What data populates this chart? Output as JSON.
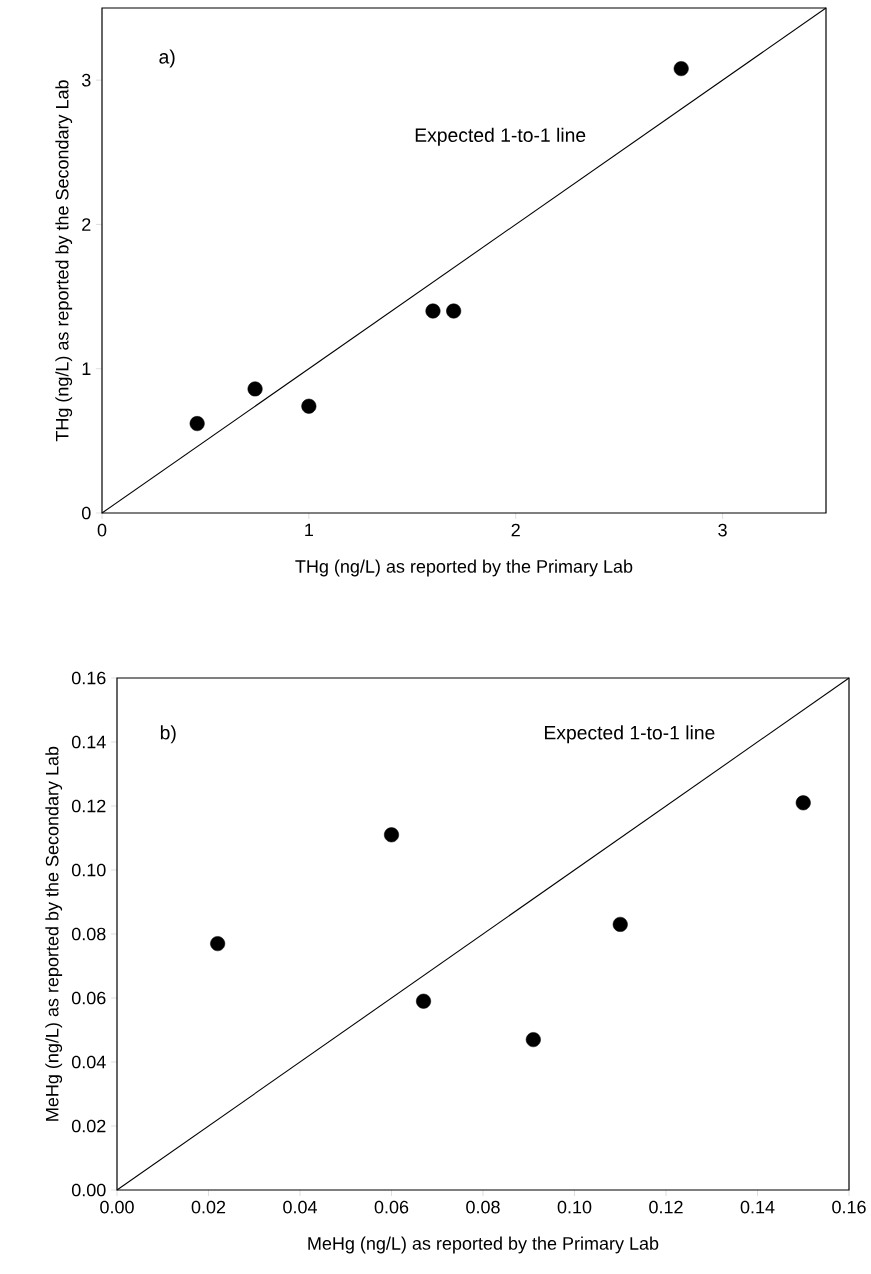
{
  "chart_data": [
    {
      "type": "scatter",
      "xlabel": "THg (ng/L) as reported by the Primary Lab",
      "ylabel": "THg (ng/L) as reported by the Secondary Lab",
      "xlim": [
        0,
        3.5
      ],
      "ylim": [
        0,
        3.5
      ],
      "xticks": [
        0,
        1,
        2,
        3
      ],
      "yticks": [
        0,
        1,
        2,
        3
      ],
      "series": [
        {
          "x": [
            0.46,
            0.74,
            1.0,
            1.6,
            1.7,
            2.8
          ],
          "values": [
            0.62,
            0.86,
            0.74,
            1.4,
            1.4,
            3.08
          ],
          "color": "#000000",
          "marker": "circle"
        },
        {
          "type": "line",
          "x": [
            0,
            3.5
          ],
          "values": [
            0,
            3.5
          ],
          "color": "#000000",
          "marker": "none"
        }
      ],
      "annotations": [
        "a)",
        "Expected 1-to-1 line"
      ]
    },
    {
      "type": "scatter",
      "xlabel": "MeHg (ng/L) as reported by the Primary Lab",
      "ylabel": "MeHg (ng/L) as reported by the Secondary Lab",
      "xlim": [
        0,
        0.16
      ],
      "ylim": [
        0,
        0.16
      ],
      "xticks": [
        {
          "value": 0,
          "label": "0.00"
        },
        {
          "value": 0.02,
          "label": "0.02"
        },
        {
          "value": 0.04,
          "label": "0.04"
        },
        {
          "value": 0.06,
          "label": "0.06"
        },
        {
          "value": 0.08,
          "label": "0.08"
        },
        {
          "value": 0.1,
          "label": "0.10"
        },
        {
          "value": 0.12,
          "label": "0.12"
        },
        {
          "value": 0.14,
          "label": "0.14"
        },
        {
          "value": 0.16,
          "label": "0.16"
        }
      ],
      "yticks": [
        {
          "value": 0,
          "label": "0.00"
        },
        {
          "value": 0.02,
          "label": "0.02"
        },
        {
          "value": 0.04,
          "label": "0.04"
        },
        {
          "value": 0.06,
          "label": "0.06"
        },
        {
          "value": 0.08,
          "label": "0.08"
        },
        {
          "value": 0.1,
          "label": "0.10"
        },
        {
          "value": 0.12,
          "label": "0.12"
        },
        {
          "value": 0.14,
          "label": "0.14"
        },
        {
          "value": 0.16,
          "label": "0.16"
        }
      ],
      "series": [
        {
          "x": [
            0.022,
            0.06,
            0.067,
            0.091,
            0.11,
            0.15
          ],
          "values": [
            0.077,
            0.111,
            0.059,
            0.047,
            0.083,
            0.121
          ],
          "color": "#000000",
          "marker": "circle"
        },
        {
          "type": "line",
          "x": [
            0,
            0.16
          ],
          "values": [
            0,
            0.16
          ],
          "color": "#000000",
          "marker": "none"
        }
      ],
      "annotations": [
        "b)",
        "Expected 1-to-1 line"
      ]
    }
  ]
}
